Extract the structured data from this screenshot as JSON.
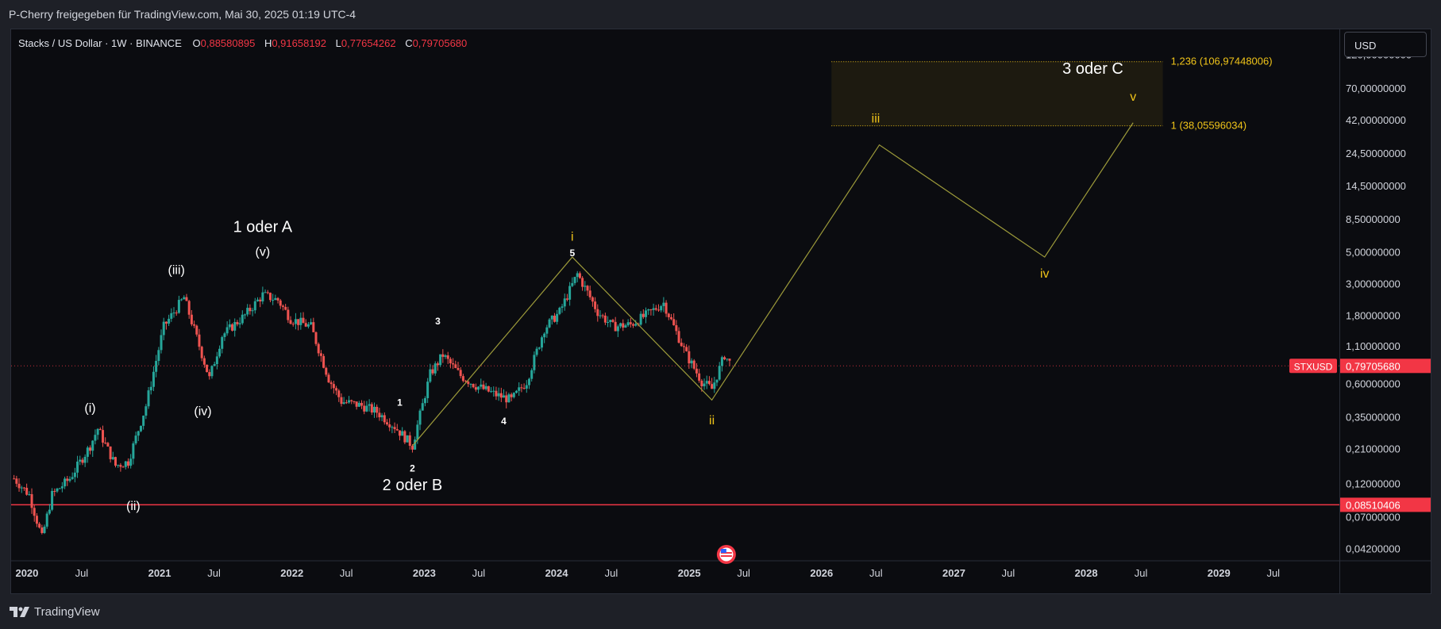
{
  "header": {
    "publisher": "P-Cherry freigegeben für TradingView.com, Mai 30, 2025 01:19 UTC-4"
  },
  "legend": {
    "symbol": "Stacks / US Dollar · 1W · BINANCE",
    "open_label": "O",
    "open": "0,88580895",
    "high_label": "H",
    "high": "0,91658192",
    "low_label": "L",
    "low": "0,77654262",
    "close_label": "C",
    "close": "0,79705680"
  },
  "currency_button": "USD",
  "footer": {
    "brand": "TradingView"
  },
  "colors": {
    "background": "#0b0c10",
    "up": "#26a69a",
    "down": "#ef5350",
    "projection": "#9c9a3a",
    "fib_label": "#f0c419",
    "support_line": "#f23645",
    "price_badge": "#f23645"
  },
  "icons": {
    "flag": "us-flag-icon",
    "logo": "tradingview-logo-icon"
  },
  "chart_data": {
    "type": "candlestick",
    "symbol": "STXUSD",
    "interval": "1W",
    "y_scale": "log",
    "ylim": [
      0.032,
      180
    ],
    "x_range": [
      "2019-12-20",
      "2029-12-31"
    ],
    "y_ticks": [
      {
        "value": 120,
        "label": "120,00000000"
      },
      {
        "value": 70,
        "label": "70,00000000"
      },
      {
        "value": 42,
        "label": "42,00000000"
      },
      {
        "value": 24.5,
        "label": "24,50000000"
      },
      {
        "value": 14.5,
        "label": "14,50000000"
      },
      {
        "value": 8.5,
        "label": "8,50000000"
      },
      {
        "value": 5,
        "label": "5,00000000"
      },
      {
        "value": 3,
        "label": "3,00000000"
      },
      {
        "value": 1.8,
        "label": "1,80000000"
      },
      {
        "value": 1.1,
        "label": "1,10000000"
      },
      {
        "value": 0.6,
        "label": "0,60000000"
      },
      {
        "value": 0.35,
        "label": "0,35000000"
      },
      {
        "value": 0.21,
        "label": "0,21000000"
      },
      {
        "value": 0.12,
        "label": "0,12000000"
      },
      {
        "value": 0.07,
        "label": "0,07000000"
      },
      {
        "value": 0.042,
        "label": "0,04200000"
      }
    ],
    "x_ticks": [
      {
        "date": "2020-01-01",
        "label": "2020",
        "bold": true
      },
      {
        "date": "2020-07-01",
        "label": "Jul",
        "bold": false
      },
      {
        "date": "2021-01-01",
        "label": "2021",
        "bold": true
      },
      {
        "date": "2021-07-01",
        "label": "Jul",
        "bold": false
      },
      {
        "date": "2022-01-01",
        "label": "2022",
        "bold": true
      },
      {
        "date": "2022-07-01",
        "label": "Jul",
        "bold": false
      },
      {
        "date": "2023-01-01",
        "label": "2023",
        "bold": true
      },
      {
        "date": "2023-07-01",
        "label": "Jul",
        "bold": false
      },
      {
        "date": "2024-01-01",
        "label": "2024",
        "bold": true
      },
      {
        "date": "2024-07-01",
        "label": "Jul",
        "bold": false
      },
      {
        "date": "2025-01-01",
        "label": "2025",
        "bold": true
      },
      {
        "date": "2025-07-01",
        "label": "Jul",
        "bold": false
      },
      {
        "date": "2026-01-01",
        "label": "2026",
        "bold": true
      },
      {
        "date": "2026-07-01",
        "label": "Jul",
        "bold": false
      },
      {
        "date": "2027-01-01",
        "label": "2027",
        "bold": true
      },
      {
        "date": "2027-07-01",
        "label": "Jul",
        "bold": false
      },
      {
        "date": "2028-01-01",
        "label": "2028",
        "bold": true
      },
      {
        "date": "2028-07-01",
        "label": "Jul",
        "bold": false
      },
      {
        "date": "2029-01-01",
        "label": "2029",
        "bold": true
      },
      {
        "date": "2029-07-01",
        "label": "Jul",
        "bold": false
      }
    ],
    "price_path": [
      [
        "2019-12-28",
        0.13
      ],
      [
        "2020-02-08",
        0.1
      ],
      [
        "2020-03-14",
        0.05
      ],
      [
        "2020-04-11",
        0.1
      ],
      [
        "2020-05-30",
        0.13
      ],
      [
        "2020-07-25",
        0.22
      ],
      [
        "2020-08-15",
        0.29
      ],
      [
        "2020-10-03",
        0.16
      ],
      [
        "2020-11-07",
        0.17
      ],
      [
        "2020-12-26",
        0.42
      ],
      [
        "2021-02-13",
        1.5
      ],
      [
        "2021-04-10",
        2.4
      ],
      [
        "2021-05-22",
        1.1
      ],
      [
        "2021-06-19",
        0.65
      ],
      [
        "2021-07-24",
        1.3
      ],
      [
        "2021-09-25",
        1.8
      ],
      [
        "2021-11-13",
        2.5
      ],
      [
        "2021-12-25",
        2.3
      ],
      [
        "2022-01-29",
        1.7
      ],
      [
        "2022-03-26",
        1.5
      ],
      [
        "2022-05-14",
        0.65
      ],
      [
        "2022-06-18",
        0.45
      ],
      [
        "2022-08-13",
        0.42
      ],
      [
        "2022-09-24",
        0.38
      ],
      [
        "2022-11-12",
        0.3
      ],
      [
        "2022-12-31",
        0.22
      ],
      [
        "2023-02-18",
        0.7
      ],
      [
        "2023-03-25",
        0.95
      ],
      [
        "2023-05-13",
        0.68
      ],
      [
        "2023-06-24",
        0.58
      ],
      [
        "2023-08-19",
        0.5
      ],
      [
        "2023-09-30",
        0.46
      ],
      [
        "2023-11-11",
        0.62
      ],
      [
        "2023-12-30",
        1.45
      ],
      [
        "2024-02-10",
        1.9
      ],
      [
        "2024-03-30",
        3.5
      ],
      [
        "2024-04-27",
        2.6
      ],
      [
        "2024-05-25",
        1.9
      ],
      [
        "2024-07-06",
        1.5
      ],
      [
        "2024-08-24",
        1.55
      ],
      [
        "2024-10-05",
        1.8
      ],
      [
        "2024-11-23",
        2.2
      ],
      [
        "2024-12-21",
        1.5
      ],
      [
        "2025-01-25",
        0.95
      ],
      [
        "2025-03-08",
        0.62
      ],
      [
        "2025-04-05",
        0.55
      ],
      [
        "2025-05-10",
        0.95
      ],
      [
        "2025-05-30",
        0.797
      ]
    ],
    "projection_lines": [
      {
        "name": "impulse-channel",
        "points": [
          [
            "2022-12-31",
            0.22
          ],
          [
            "2024-03-16",
            4.6
          ],
          [
            "2025-04-05",
            0.46
          ],
          [
            "2026-07-11",
            28
          ],
          [
            "2027-10-10",
            4.6
          ],
          [
            "2028-06-10",
            40
          ]
        ]
      }
    ],
    "zone": {
      "from_date": "2026-03-01",
      "to_date": "2028-08-31",
      "low": 38.05596034,
      "high": 106.97448006
    },
    "fib_levels": [
      {
        "value": 106.97448006,
        "label": "1,236 (106,97448006)"
      },
      {
        "value": 38.05596034,
        "label": "1 (38,05596034)"
      }
    ],
    "support_line": {
      "value": 0.08510406,
      "label": "0,08510406"
    },
    "current_price": {
      "value": 0.7970568,
      "label": "0,79705680",
      "symbol_label": "STXUSD"
    },
    "wave_labels": [
      {
        "text": "1 oder A",
        "date": "2021-11-13",
        "price": 6.9,
        "color": "#ffffff",
        "size": 20
      },
      {
        "text": "(v)",
        "date": "2021-11-13",
        "price": 4.7,
        "color": "#ffffff",
        "size": 16
      },
      {
        "text": "(iii)",
        "date": "2021-03-20",
        "price": 3.5,
        "color": "#ffffff",
        "size": 16
      },
      {
        "text": "(i)",
        "date": "2020-07-25",
        "price": 0.38,
        "color": "#ffffff",
        "size": 16
      },
      {
        "text": "(iv)",
        "date": "2021-06-01",
        "price": 0.36,
        "color": "#ffffff",
        "size": 16
      },
      {
        "text": "(ii)",
        "date": "2020-11-21",
        "price": 0.078,
        "color": "#ffffff",
        "size": 16
      },
      {
        "text": "1",
        "date": "2022-11-26",
        "price": 0.42,
        "color": "#ffffff",
        "size": 12
      },
      {
        "text": "2",
        "date": "2022-12-31",
        "price": 0.145,
        "color": "#ffffff",
        "size": 12
      },
      {
        "text": "2 oder B",
        "date": "2022-12-31",
        "price": 0.108,
        "color": "#ffffff",
        "size": 20
      },
      {
        "text": "3",
        "date": "2023-03-11",
        "price": 1.55,
        "color": "#ffffff",
        "size": 12
      },
      {
        "text": "4",
        "date": "2023-09-09",
        "price": 0.31,
        "color": "#ffffff",
        "size": 12
      },
      {
        "text": "5",
        "date": "2024-03-16",
        "price": 4.65,
        "color": "#ffffff",
        "size": 12
      },
      {
        "text": "i",
        "date": "2024-03-16",
        "price": 6.0,
        "color": "#f0c419",
        "size": 16
      },
      {
        "text": "ii",
        "date": "2025-04-05",
        "price": 0.31,
        "color": "#f0c419",
        "size": 16
      },
      {
        "text": "iii",
        "date": "2026-07-01",
        "price": 40,
        "color": "#f0c419",
        "size": 16
      },
      {
        "text": "iv",
        "date": "2027-10-10",
        "price": 3.3,
        "color": "#f0c419",
        "size": 16
      },
      {
        "text": "v",
        "date": "2028-06-10",
        "price": 57,
        "color": "#f0c419",
        "size": 16
      },
      {
        "text": "3 oder C",
        "date": "2028-02-20",
        "price": 88,
        "color": "#ffffff",
        "size": 20
      }
    ]
  }
}
